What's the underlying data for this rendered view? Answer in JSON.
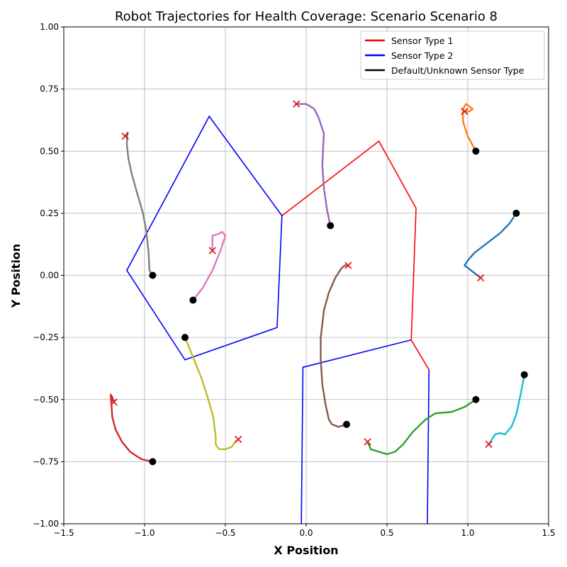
{
  "chart_data": {
    "type": "line",
    "title": "Robot Trajectories for Health Coverage: Scenario Scenario 8",
    "xlabel": "X Position",
    "ylabel": "Y Position",
    "xlim": [
      -1.5,
      1.5
    ],
    "ylim": [
      -1.0,
      1.0
    ],
    "xticks": [
      -1.5,
      -1.0,
      -0.5,
      0.0,
      0.5,
      1.0,
      1.5
    ],
    "yticks": [
      -1.0,
      -0.75,
      -0.5,
      -0.25,
      0.0,
      0.25,
      0.5,
      0.75,
      1.0
    ],
    "xtick_labels": [
      "−1.5",
      "−1.0",
      "−0.5",
      "0.0",
      "0.5",
      "1.0",
      "1.5"
    ],
    "ytick_labels": [
      "−1.00",
      "−0.75",
      "−0.50",
      "−0.25",
      "0.00",
      "0.25",
      "0.50",
      "0.75",
      "1.00"
    ],
    "grid": true,
    "legend_position": "top-right",
    "legend": [
      {
        "label": "Sensor Type 1",
        "color": "#ff0000"
      },
      {
        "label": "Sensor Type 2",
        "color": "#0000ff"
      },
      {
        "label": "Default/Unknown Sensor Type",
        "color": "#000000"
      }
    ],
    "regions": [
      {
        "sensor": "Sensor Type 1",
        "color": "#ff0000",
        "points": [
          [
            -0.15,
            0.24
          ],
          [
            0.45,
            0.54
          ],
          [
            0.68,
            0.27
          ],
          [
            0.65,
            -0.26
          ],
          [
            0.76,
            -0.38
          ]
        ]
      },
      {
        "sensor": "Sensor Type 2",
        "color": "#0000ff",
        "points": [
          [
            -0.15,
            0.24
          ],
          [
            -0.6,
            0.64
          ],
          [
            -1.11,
            0.02
          ],
          [
            -0.75,
            -0.34
          ],
          [
            -0.18,
            -0.21
          ],
          [
            -0.15,
            0.24
          ]
        ]
      },
      {
        "sensor": "Sensor Type 2",
        "color": "#0000ff",
        "points": [
          [
            -0.03,
            -1.0
          ],
          [
            -0.02,
            -0.37
          ],
          [
            0.65,
            -0.26
          ]
        ]
      },
      {
        "sensor": "Sensor Type 2",
        "color": "#0000ff",
        "points": [
          [
            0.76,
            -0.38
          ],
          [
            0.75,
            -1.0
          ]
        ]
      }
    ],
    "series": [
      {
        "color": "#1f77b4",
        "start": [
          1.3,
          0.25
        ],
        "end": [
          1.08,
          -0.01
        ],
        "points": [
          [
            1.3,
            0.25
          ],
          [
            1.26,
            0.21
          ],
          [
            1.2,
            0.17
          ],
          [
            1.12,
            0.13
          ],
          [
            1.04,
            0.09
          ],
          [
            1.0,
            0.06
          ],
          [
            0.98,
            0.04
          ],
          [
            1.0,
            0.03
          ],
          [
            1.04,
            0.01
          ],
          [
            1.08,
            -0.01
          ]
        ]
      },
      {
        "color": "#ff7f0e",
        "start": [
          1.05,
          0.5
        ],
        "end": [
          0.98,
          0.66
        ],
        "points": [
          [
            1.05,
            0.5
          ],
          [
            1.0,
            0.56
          ],
          [
            0.97,
            0.62
          ],
          [
            0.97,
            0.67
          ],
          [
            0.99,
            0.69
          ],
          [
            1.03,
            0.67
          ],
          [
            1.01,
            0.66
          ],
          [
            0.98,
            0.66
          ]
        ]
      },
      {
        "color": "#2ca02c",
        "start": [
          1.05,
          -0.5
        ],
        "end": [
          0.38,
          -0.67
        ],
        "points": [
          [
            1.05,
            -0.5
          ],
          [
            0.98,
            -0.53
          ],
          [
            0.9,
            -0.55
          ],
          [
            0.8,
            -0.555
          ],
          [
            0.74,
            -0.58
          ],
          [
            0.66,
            -0.63
          ],
          [
            0.6,
            -0.68
          ],
          [
            0.55,
            -0.71
          ],
          [
            0.5,
            -0.72
          ],
          [
            0.45,
            -0.71
          ],
          [
            0.4,
            -0.7
          ],
          [
            0.38,
            -0.67
          ]
        ]
      },
      {
        "color": "#d62728",
        "start": [
          -0.95,
          -0.75
        ],
        "end": [
          -1.19,
          -0.51
        ],
        "points": [
          [
            -0.95,
            -0.75
          ],
          [
            -1.02,
            -0.74
          ],
          [
            -1.09,
            -0.71
          ],
          [
            -1.14,
            -0.67
          ],
          [
            -1.18,
            -0.62
          ],
          [
            -1.2,
            -0.57
          ],
          [
            -1.205,
            -0.52
          ],
          [
            -1.21,
            -0.48
          ],
          [
            -1.2,
            -0.49
          ],
          [
            -1.19,
            -0.51
          ]
        ]
      },
      {
        "color": "#9467bd",
        "start": [
          0.15,
          0.2
        ],
        "end": [
          -0.06,
          0.69
        ],
        "points": [
          [
            0.15,
            0.2
          ],
          [
            0.13,
            0.26
          ],
          [
            0.11,
            0.35
          ],
          [
            0.1,
            0.44
          ],
          [
            0.105,
            0.52
          ],
          [
            0.11,
            0.57
          ],
          [
            0.08,
            0.63
          ],
          [
            0.05,
            0.67
          ],
          [
            0.0,
            0.69
          ],
          [
            -0.04,
            0.69
          ],
          [
            -0.06,
            0.69
          ]
        ]
      },
      {
        "color": "#8c564b",
        "start": [
          0.25,
          -0.6
        ],
        "end": [
          0.26,
          0.04
        ],
        "points": [
          [
            0.25,
            -0.6
          ],
          [
            0.2,
            -0.61
          ],
          [
            0.16,
            -0.6
          ],
          [
            0.14,
            -0.58
          ],
          [
            0.12,
            -0.52
          ],
          [
            0.1,
            -0.44
          ],
          [
            0.09,
            -0.34
          ],
          [
            0.09,
            -0.25
          ],
          [
            0.11,
            -0.14
          ],
          [
            0.14,
            -0.07
          ],
          [
            0.18,
            -0.01
          ],
          [
            0.22,
            0.03
          ],
          [
            0.24,
            0.04
          ],
          [
            0.26,
            0.04
          ]
        ]
      },
      {
        "color": "#e377c2",
        "start": [
          -0.7,
          -0.1
        ],
        "end": [
          -0.58,
          0.1
        ],
        "points": [
          [
            -0.7,
            -0.1
          ],
          [
            -0.64,
            -0.05
          ],
          [
            -0.58,
            0.02
          ],
          [
            -0.53,
            0.1
          ],
          [
            -0.5,
            0.16
          ],
          [
            -0.52,
            0.175
          ],
          [
            -0.55,
            0.165
          ],
          [
            -0.58,
            0.16
          ],
          [
            -0.58,
            0.13
          ],
          [
            -0.58,
            0.1
          ]
        ]
      },
      {
        "color": "#7f7f7f",
        "start": [
          -0.95,
          0.0
        ],
        "end": [
          -1.12,
          0.56
        ],
        "points": [
          [
            -0.95,
            0.0
          ],
          [
            -0.97,
            0.02
          ],
          [
            -0.975,
            0.09
          ],
          [
            -0.99,
            0.18
          ],
          [
            -1.01,
            0.25
          ],
          [
            -1.05,
            0.34
          ],
          [
            -1.08,
            0.41
          ],
          [
            -1.1,
            0.47
          ],
          [
            -1.11,
            0.53
          ],
          [
            -1.105,
            0.575
          ],
          [
            -1.11,
            0.57
          ],
          [
            -1.12,
            0.56
          ]
        ]
      },
      {
        "color": "#bcbd22",
        "start": [
          -0.75,
          -0.25
        ],
        "end": [
          -0.42,
          -0.66
        ],
        "points": [
          [
            -0.75,
            -0.25
          ],
          [
            -0.7,
            -0.33
          ],
          [
            -0.65,
            -0.41
          ],
          [
            -0.61,
            -0.49
          ],
          [
            -0.575,
            -0.57
          ],
          [
            -0.56,
            -0.65
          ],
          [
            -0.56,
            -0.68
          ],
          [
            -0.54,
            -0.7
          ],
          [
            -0.5,
            -0.7
          ],
          [
            -0.46,
            -0.69
          ],
          [
            -0.44,
            -0.67
          ],
          [
            -0.42,
            -0.66
          ]
        ]
      },
      {
        "color": "#17becf",
        "start": [
          1.35,
          -0.4
        ],
        "end": [
          1.13,
          -0.68
        ],
        "points": [
          [
            1.35,
            -0.4
          ],
          [
            1.33,
            -0.47
          ],
          [
            1.3,
            -0.56
          ],
          [
            1.27,
            -0.61
          ],
          [
            1.23,
            -0.64
          ],
          [
            1.2,
            -0.635
          ],
          [
            1.17,
            -0.64
          ],
          [
            1.14,
            -0.67
          ],
          [
            1.13,
            -0.68
          ]
        ]
      }
    ]
  }
}
